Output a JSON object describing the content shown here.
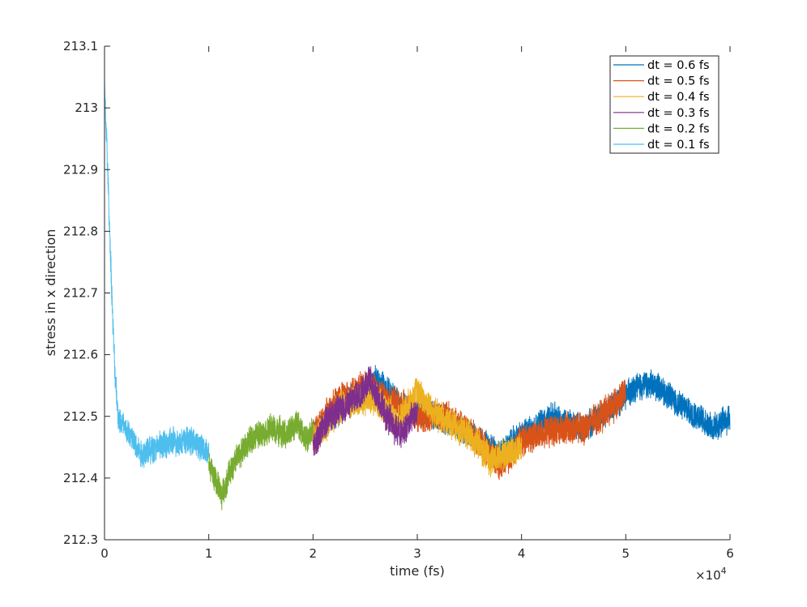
{
  "chart_data": {
    "type": "line",
    "xlabel": "time (fs)",
    "ylabel": "stress in x direction",
    "x_multiplier_label": "×10",
    "x_multiplier_exponent": "4",
    "xlim": [
      0,
      6
    ],
    "ylim": [
      212.3,
      213.1
    ],
    "x_ticks": [
      {
        "value": 0,
        "label": "0"
      },
      {
        "value": 1,
        "label": "1"
      },
      {
        "value": 2,
        "label": "2"
      },
      {
        "value": 3,
        "label": "3"
      },
      {
        "value": 4,
        "label": "4"
      },
      {
        "value": 5,
        "label": "5"
      },
      {
        "value": 6,
        "label": "6"
      }
    ],
    "y_ticks": [
      {
        "value": 212.3,
        "label": "212.3"
      },
      {
        "value": 212.4,
        "label": "212.4"
      },
      {
        "value": 212.5,
        "label": "212.5"
      },
      {
        "value": 212.6,
        "label": "212.6"
      },
      {
        "value": 212.7,
        "label": "212.7"
      },
      {
        "value": 212.8,
        "label": "212.8"
      },
      {
        "value": 212.9,
        "label": "212.9"
      },
      {
        "value": 213.0,
        "label": "213"
      },
      {
        "value": 213.1,
        "label": "213.1"
      }
    ],
    "grid": false,
    "legend_position": "top-right",
    "series": [
      {
        "name": "dt = 0.6 fs",
        "color": "#0072BD",
        "noise": 0.04,
        "points": [
          [
            2.0,
            212.47
          ],
          [
            2.3,
            212.52
          ],
          [
            2.6,
            212.56
          ],
          [
            2.9,
            212.51
          ],
          [
            3.2,
            212.5
          ],
          [
            3.5,
            212.47
          ],
          [
            3.8,
            212.44
          ],
          [
            4.0,
            212.47
          ],
          [
            4.3,
            212.5
          ],
          [
            4.6,
            212.48
          ],
          [
            4.9,
            212.52
          ],
          [
            5.1,
            212.55
          ],
          [
            5.3,
            212.55
          ],
          [
            5.5,
            212.52
          ],
          [
            5.7,
            212.5
          ],
          [
            5.85,
            212.48
          ],
          [
            6.0,
            212.5
          ]
        ]
      },
      {
        "name": "dt = 0.5 fs",
        "color": "#D95319",
        "noise": 0.045,
        "points": [
          [
            2.0,
            212.47
          ],
          [
            2.2,
            212.52
          ],
          [
            2.5,
            212.55
          ],
          [
            2.8,
            212.52
          ],
          [
            3.0,
            212.5
          ],
          [
            3.3,
            212.5
          ],
          [
            3.55,
            212.47
          ],
          [
            3.8,
            212.42
          ],
          [
            4.0,
            212.46
          ],
          [
            4.3,
            212.48
          ],
          [
            4.6,
            212.48
          ],
          [
            4.9,
            212.52
          ],
          [
            5.0,
            212.54
          ]
        ]
      },
      {
        "name": "dt = 0.4 fs",
        "color": "#EDB120",
        "noise": 0.045,
        "points": [
          [
            2.0,
            212.46
          ],
          [
            2.3,
            212.52
          ],
          [
            2.6,
            212.53
          ],
          [
            2.8,
            212.49
          ],
          [
            3.0,
            212.54
          ],
          [
            3.2,
            212.5
          ],
          [
            3.5,
            212.47
          ],
          [
            3.7,
            212.43
          ],
          [
            3.85,
            212.44
          ],
          [
            4.0,
            212.45
          ]
        ]
      },
      {
        "name": "dt = 0.3 fs",
        "color": "#7E2F8E",
        "noise": 0.045,
        "points": [
          [
            2.0,
            212.45
          ],
          [
            2.15,
            212.5
          ],
          [
            2.35,
            212.52
          ],
          [
            2.55,
            212.56
          ],
          [
            2.7,
            212.5
          ],
          [
            2.85,
            212.47
          ],
          [
            3.0,
            212.51
          ]
        ]
      },
      {
        "name": "dt = 0.2 fs",
        "color": "#77AC30",
        "noise": 0.04,
        "points": [
          [
            1.0,
            212.42
          ],
          [
            1.08,
            212.39
          ],
          [
            1.12,
            212.37
          ],
          [
            1.2,
            212.41
          ],
          [
            1.3,
            212.44
          ],
          [
            1.45,
            212.47
          ],
          [
            1.6,
            212.48
          ],
          [
            1.75,
            212.47
          ],
          [
            1.85,
            212.49
          ],
          [
            1.95,
            212.46
          ],
          [
            2.0,
            212.48
          ]
        ]
      },
      {
        "name": "dt = 0.1 fs",
        "color": "#4DBEEE",
        "noise": 0.04,
        "points": [
          [
            0.0,
            213.03
          ],
          [
            0.02,
            212.95
          ],
          [
            0.04,
            212.85
          ],
          [
            0.06,
            212.75
          ],
          [
            0.08,
            212.65
          ],
          [
            0.1,
            212.57
          ],
          [
            0.13,
            212.5
          ],
          [
            0.2,
            212.48
          ],
          [
            0.35,
            212.44
          ],
          [
            0.5,
            212.45
          ],
          [
            0.7,
            212.46
          ],
          [
            0.85,
            212.46
          ],
          [
            1.0,
            212.44
          ]
        ]
      }
    ]
  }
}
